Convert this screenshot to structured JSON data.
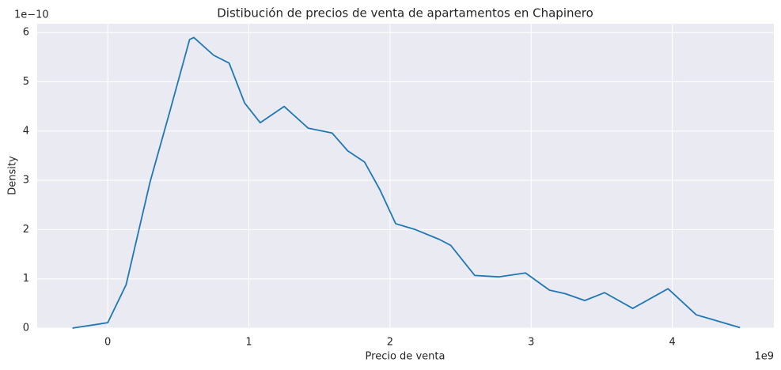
{
  "chart_data": {
    "type": "line",
    "title": "Distibución de precios de venta de apartamentos en Chapinero",
    "x_label": "Precio de venta",
    "y_label": "Density",
    "x_offset_label": "1e9",
    "y_offset_label": "1e−10",
    "x": [
      -0.25,
      0,
      0.13,
      0.3,
      0.44,
      0.58,
      0.61,
      0.75,
      0.86,
      0.97,
      1.08,
      1.25,
      1.42,
      1.59,
      1.7,
      1.82,
      1.93,
      2.04,
      2.18,
      2.35,
      2.43,
      2.6,
      2.77,
      2.96,
      3.13,
      3.24,
      3.38,
      3.52,
      3.72,
      3.97,
      4.17,
      4.48
    ],
    "series": [
      {
        "color": "#1f77b4",
        "values": [
          0,
          0.11,
          0.88,
          2.97,
          4.4,
          5.86,
          5.9,
          5.54,
          5.38,
          4.57,
          4.17,
          4.5,
          4.06,
          3.96,
          3.6,
          3.37,
          2.8,
          2.12,
          2.0,
          1.8,
          1.68,
          1.07,
          1.04,
          1.12,
          0.77,
          0.7,
          0.56,
          0.72,
          0.4,
          0.8,
          0.27,
          0.01
        ]
      }
    ],
    "xlim": [
      -0.5,
      4.72
    ],
    "ylim": [
      0,
      6.18
    ],
    "xticks": [
      0,
      1,
      2,
      3,
      4
    ],
    "yticks": [
      0,
      1,
      2,
      3,
      4,
      5,
      6
    ],
    "grid": true
  }
}
